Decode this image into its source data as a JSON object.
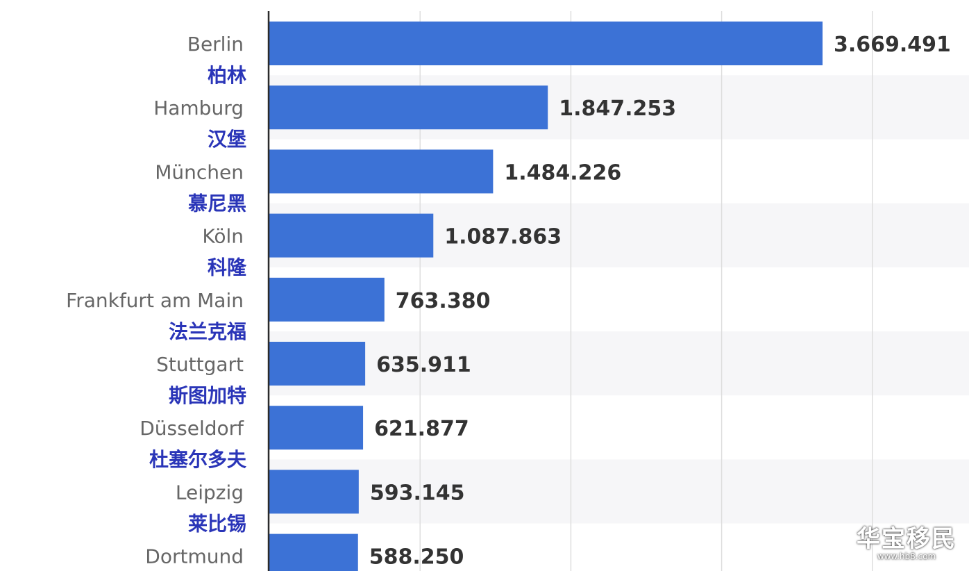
{
  "chart_data": {
    "type": "bar",
    "orientation": "horizontal",
    "categories": [
      "Berlin",
      "Hamburg",
      "München",
      "Köln",
      "Frankfurt am Main",
      "Stuttgart",
      "Düsseldorf",
      "Leipzig",
      "Dortmund"
    ],
    "categories_cn": [
      "柏林",
      "汉堡",
      "慕尼黑",
      "科隆",
      "法兰克福",
      "斯图加特",
      "杜塞尔多夫",
      "莱比锡",
      ""
    ],
    "values": [
      3669491,
      1847253,
      1484226,
      1087863,
      763380,
      635911,
      621877,
      593145,
      588250
    ],
    "value_labels": [
      "3.669.491",
      "1.847.253",
      "1.484.226",
      "1.087.863",
      "763.380",
      "635.911",
      "621.877",
      "593.145",
      "588.250"
    ],
    "xlim": [
      0,
      4500000
    ],
    "grid": true,
    "bar_color": "#3c72d6"
  },
  "watermark": {
    "text": "华宝移民",
    "url": "www.hb8.com"
  }
}
